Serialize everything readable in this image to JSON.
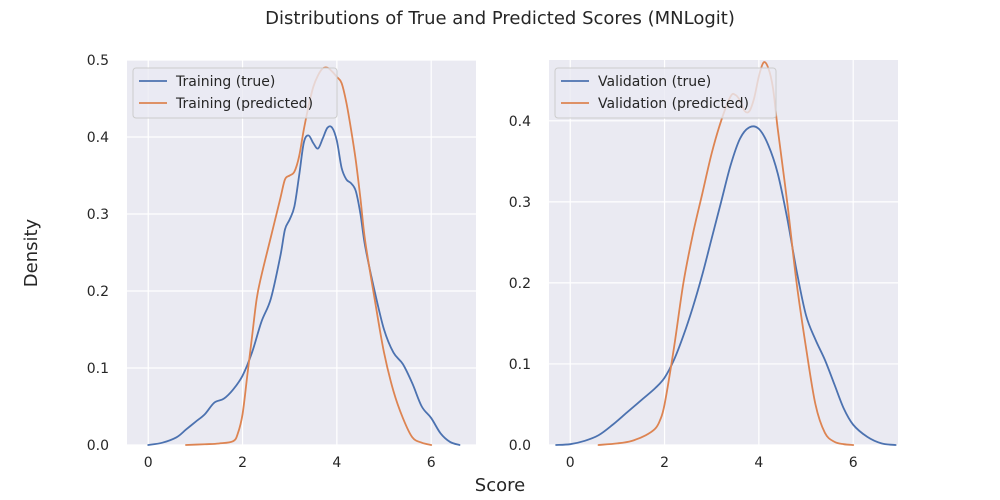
{
  "figure": {
    "title": "Distributions of True and Predicted Scores (MNLogit)",
    "xlabel": "Score",
    "ylabel": "Density"
  },
  "colors": {
    "background": "#eaeaf2",
    "grid": "#ffffff",
    "true_series": "#4c72b0",
    "predicted_series": "#dd8452"
  },
  "chart_data": [
    {
      "type": "line",
      "grid": true,
      "legend_position": "upper-left",
      "xlim": [
        -0.45,
        6.95
      ],
      "ylim": [
        0,
        0.5
      ],
      "xticks": [
        0,
        2,
        4,
        6
      ],
      "yticks": [
        0.0,
        0.1,
        0.2,
        0.3,
        0.4,
        0.5
      ],
      "ytick_labels": [
        "0.0",
        "0.1",
        "0.2",
        "0.3",
        "0.4",
        "0.5"
      ],
      "series": [
        {
          "name": "Training (true)",
          "color": "#4c72b0",
          "x": [
            0.0,
            0.3,
            0.6,
            0.8,
            1.0,
            1.2,
            1.4,
            1.6,
            1.8,
            2.0,
            2.2,
            2.4,
            2.6,
            2.8,
            2.9,
            3.0,
            3.1,
            3.2,
            3.3,
            3.4,
            3.5,
            3.6,
            3.7,
            3.8,
            3.9,
            4.0,
            4.1,
            4.2,
            4.3,
            4.4,
            4.5,
            4.6,
            4.8,
            5.0,
            5.2,
            5.4,
            5.6,
            5.8,
            6.0,
            6.2,
            6.4,
            6.6
          ],
          "y": [
            0.0,
            0.003,
            0.01,
            0.02,
            0.03,
            0.04,
            0.055,
            0.06,
            0.072,
            0.09,
            0.12,
            0.16,
            0.19,
            0.245,
            0.28,
            0.293,
            0.31,
            0.35,
            0.393,
            0.402,
            0.392,
            0.385,
            0.398,
            0.412,
            0.412,
            0.395,
            0.36,
            0.345,
            0.34,
            0.33,
            0.3,
            0.258,
            0.2,
            0.15,
            0.12,
            0.105,
            0.08,
            0.05,
            0.035,
            0.015,
            0.004,
            0.0
          ]
        },
        {
          "name": "Training (predicted)",
          "color": "#dd8452",
          "x": [
            0.8,
            1.2,
            1.5,
            1.8,
            1.9,
            2.0,
            2.1,
            2.2,
            2.3,
            2.4,
            2.6,
            2.8,
            2.9,
            3.0,
            3.1,
            3.2,
            3.3,
            3.4,
            3.5,
            3.6,
            3.7,
            3.8,
            3.9,
            4.0,
            4.1,
            4.2,
            4.3,
            4.4,
            4.5,
            4.6,
            4.8,
            5.0,
            5.2,
            5.4,
            5.6,
            5.8,
            6.0
          ],
          "y": [
            0.0,
            0.001,
            0.002,
            0.005,
            0.015,
            0.04,
            0.09,
            0.14,
            0.19,
            0.22,
            0.27,
            0.32,
            0.345,
            0.35,
            0.355,
            0.375,
            0.41,
            0.44,
            0.465,
            0.48,
            0.489,
            0.49,
            0.485,
            0.478,
            0.47,
            0.445,
            0.41,
            0.37,
            0.32,
            0.265,
            0.19,
            0.12,
            0.07,
            0.035,
            0.01,
            0.003,
            0.0
          ]
        }
      ]
    },
    {
      "type": "line",
      "grid": true,
      "legend_position": "upper-left",
      "xlim": [
        -0.45,
        6.95
      ],
      "ylim": [
        0,
        0.475
      ],
      "xticks": [
        0,
        2,
        4,
        6
      ],
      "yticks": [
        0.0,
        0.1,
        0.2,
        0.3,
        0.4
      ],
      "ytick_labels": [
        "0.0",
        "0.1",
        "0.2",
        "0.3",
        "0.4"
      ],
      "series": [
        {
          "name": "Validation (true)",
          "color": "#4c72b0",
          "x": [
            -0.3,
            0.0,
            0.3,
            0.6,
            0.9,
            1.2,
            1.5,
            1.8,
            2.0,
            2.2,
            2.4,
            2.6,
            2.8,
            3.0,
            3.2,
            3.4,
            3.6,
            3.8,
            4.0,
            4.2,
            4.4,
            4.6,
            4.8,
            5.0,
            5.2,
            5.4,
            5.6,
            5.8,
            6.0,
            6.3,
            6.6,
            6.9
          ],
          "y": [
            0.0,
            0.001,
            0.005,
            0.012,
            0.025,
            0.04,
            0.055,
            0.07,
            0.083,
            0.105,
            0.135,
            0.17,
            0.21,
            0.255,
            0.3,
            0.345,
            0.378,
            0.392,
            0.39,
            0.37,
            0.335,
            0.28,
            0.215,
            0.16,
            0.13,
            0.105,
            0.075,
            0.045,
            0.025,
            0.01,
            0.002,
            0.0
          ]
        },
        {
          "name": "Validation (predicted)",
          "color": "#dd8452",
          "x": [
            0.6,
            1.0,
            1.3,
            1.6,
            1.8,
            1.9,
            2.0,
            2.2,
            2.4,
            2.6,
            2.8,
            3.0,
            3.2,
            3.4,
            3.5,
            3.6,
            3.7,
            3.8,
            3.9,
            4.0,
            4.1,
            4.2,
            4.3,
            4.4,
            4.6,
            4.8,
            5.0,
            5.2,
            5.4,
            5.6,
            5.8,
            6.0
          ],
          "y": [
            0.0,
            0.002,
            0.005,
            0.012,
            0.02,
            0.03,
            0.05,
            0.12,
            0.2,
            0.26,
            0.31,
            0.36,
            0.4,
            0.43,
            0.432,
            0.425,
            0.412,
            0.412,
            0.428,
            0.455,
            0.472,
            0.465,
            0.44,
            0.39,
            0.3,
            0.2,
            0.12,
            0.05,
            0.015,
            0.004,
            0.001,
            0.0
          ]
        }
      ]
    }
  ]
}
